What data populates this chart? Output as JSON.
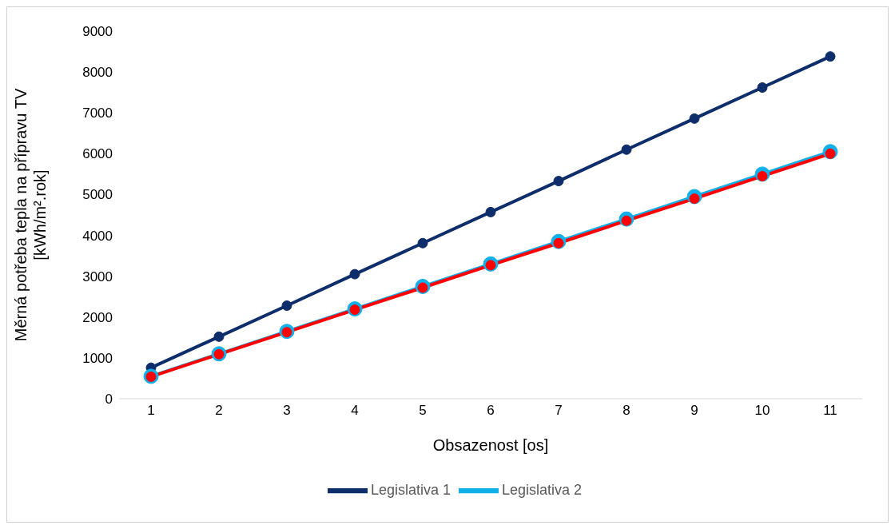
{
  "chart_data": {
    "type": "line",
    "xlabel": "Obsazenost [os]",
    "ylabel": "Měrná potřeba tepla na přípravu TV [kWh/m².rok]",
    "categories": [
      "1",
      "2",
      "3",
      "4",
      "5",
      "6",
      "7",
      "8",
      "9",
      "10",
      "11"
    ],
    "series": [
      {
        "name": "Legislativa 1",
        "color": "#0e2d6b",
        "values": [
          760,
          1520,
          2280,
          3050,
          3810,
          4570,
          5330,
          6100,
          6860,
          7620,
          8380
        ]
      },
      {
        "name": "Legislativa 2",
        "color": "#10b0ea",
        "values": [
          550,
          1100,
          1650,
          2200,
          2750,
          3300,
          3850,
          4400,
          4950,
          5500,
          6050
        ]
      },
      {
        "color": "#ff0000",
        "values": [
          540,
          1090,
          1630,
          2180,
          2720,
          3270,
          3810,
          4360,
          4900,
          5450,
          6000
        ]
      }
    ],
    "ylim": [
      0,
      9000
    ],
    "yticks": [
      0,
      1000,
      2000,
      3000,
      4000,
      5000,
      6000,
      7000,
      8000,
      9000
    ],
    "grid": false,
    "legend": "bottom",
    "marker": "circle",
    "line_style": "solid"
  }
}
